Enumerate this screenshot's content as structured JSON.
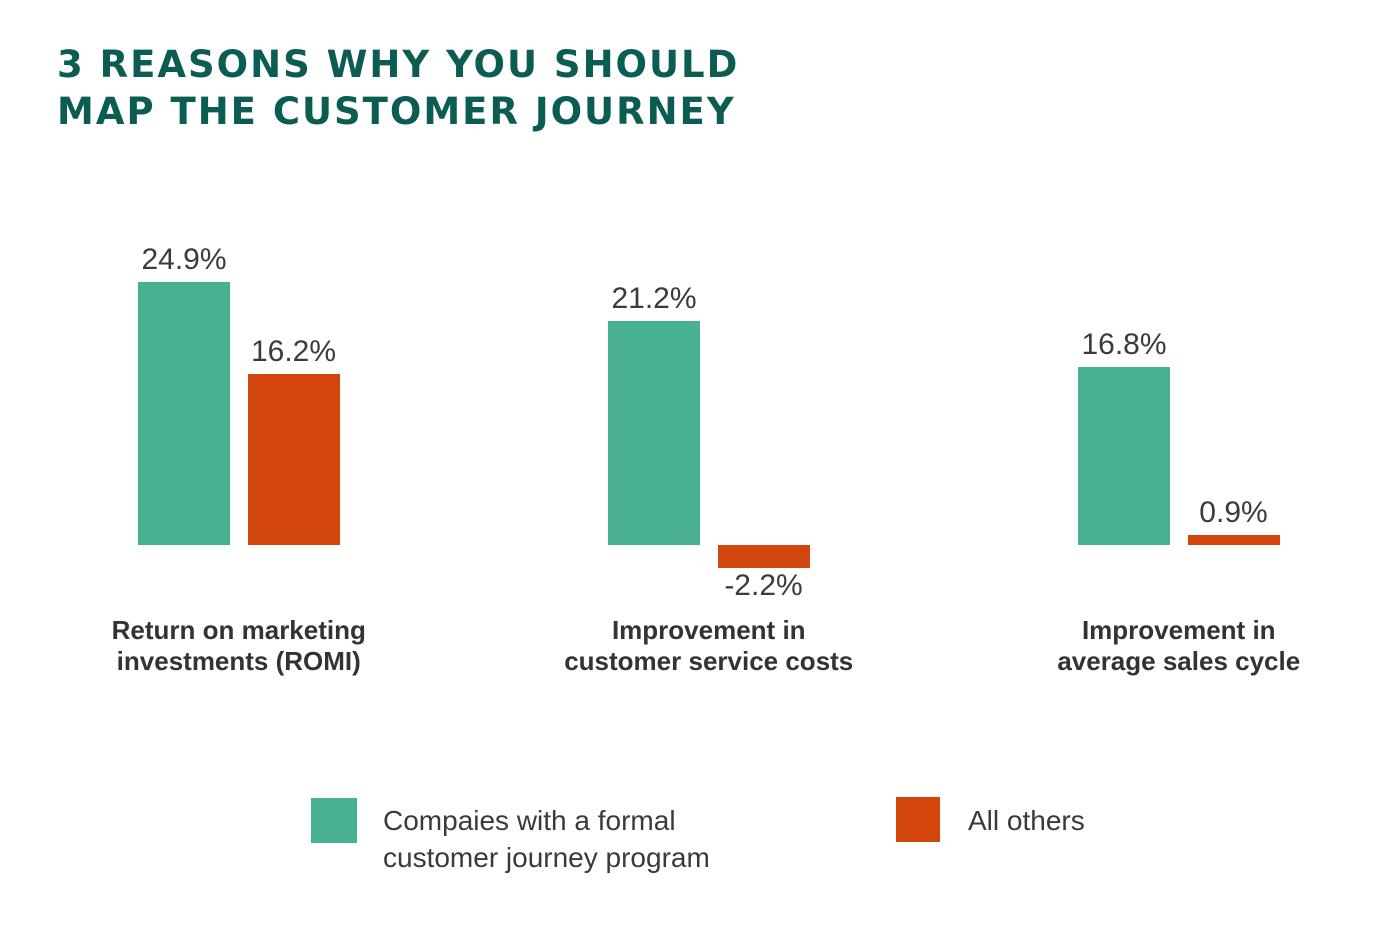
{
  "title": {
    "line1": "3 REASONS WHY YOU SHOULD",
    "line2": "MAP THE CUSTOMER JOURNEY"
  },
  "colors": {
    "title": "#0b5c52",
    "series_green": "#48b192",
    "series_orange": "#d2450d",
    "label_text": "#3b3b3b"
  },
  "chart_data": {
    "type": "bar",
    "title": "3 REASONS WHY YOU SHOULD MAP THE CUSTOMER JOURNEY",
    "categories": [
      [
        "Return on marketing",
        "investments (ROMI)"
      ],
      [
        "Improvement in",
        "customer service costs"
      ],
      [
        "Improvement in",
        "average sales cycle"
      ]
    ],
    "series": [
      {
        "name": "Compaies with a formal customer journey program",
        "color": "#48b192",
        "values": [
          24.9,
          21.2,
          16.8
        ]
      },
      {
        "name": "All others",
        "color": "#d2450d",
        "values": [
          16.2,
          -2.2,
          0.9
        ]
      }
    ],
    "value_label_suffix": "%",
    "xlabel": "",
    "ylabel": "",
    "grid": false,
    "legend_position": "bottom"
  },
  "legend": {
    "items": [
      {
        "line1": "Compaies with a formal",
        "line2": "customer journey program",
        "color": "#48b192"
      },
      {
        "line1": "All others",
        "color": "#d2450d"
      }
    ]
  }
}
